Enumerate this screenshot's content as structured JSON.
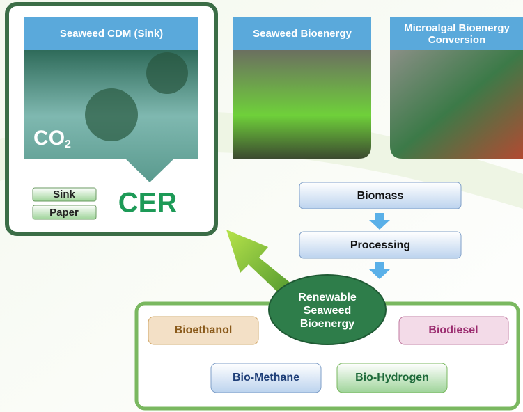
{
  "panels": [
    {
      "title": [
        "Seaweed CDM (Sink)"
      ],
      "logo": "CO",
      "logo_sub": "2"
    },
    {
      "title": [
        "Seaweed Bioenergy"
      ]
    },
    {
      "title": [
        "Microalgal Bioenergy",
        "Conversion"
      ]
    }
  ],
  "sink_labels": [
    "Sink",
    "Paper"
  ],
  "cer": "CER",
  "flow": [
    "Biomass",
    "Processing"
  ],
  "center_label": [
    "Renewable",
    "Seaweed",
    "Bioenergy"
  ],
  "products": [
    "Bioethanol",
    "Biodiesel",
    "Bio-Methane",
    "Bio-Hydrogen"
  ]
}
